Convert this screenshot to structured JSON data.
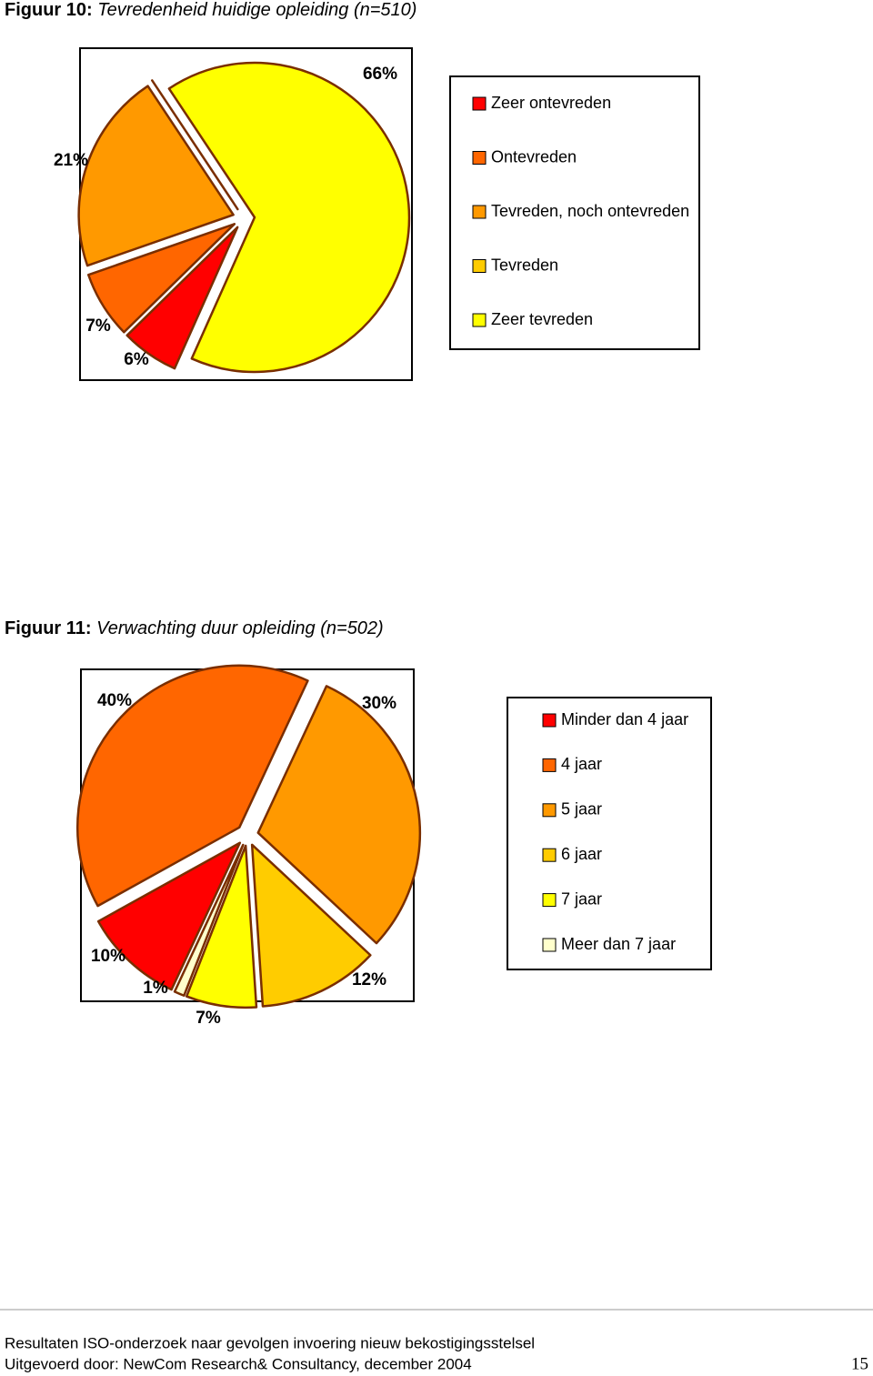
{
  "chart_data": [
    {
      "type": "pie",
      "label": "Figuur 10:",
      "title": "Tevredenheid huidige opleiding (n=510)",
      "categories": [
        "Zeer ontevreden",
        "Ontevreden",
        "Tevreden, noch ontevreden",
        "Tevreden",
        "Zeer tevreden"
      ],
      "values": [
        6,
        7,
        21,
        0,
        66
      ],
      "value_labels": [
        "6%",
        "7%",
        "21%",
        null,
        "66%"
      ],
      "colors": [
        "#ff0000",
        "#ff6600",
        "#ff9900",
        "#ffcc00",
        "#ffff00"
      ]
    },
    {
      "type": "pie",
      "label": "Figuur 11:",
      "title": "Verwachting duur opleiding (n=502)",
      "categories": [
        "Minder dan 4 jaar",
        "4 jaar",
        "5 jaar",
        "6 jaar",
        "7 jaar",
        "Meer dan 7 jaar"
      ],
      "values": [
        10,
        40,
        30,
        12,
        7,
        1
      ],
      "value_labels": [
        "10%",
        "40%",
        "30%",
        "12%",
        "7%",
        "1%"
      ],
      "colors": [
        "#ff0000",
        "#ff6600",
        "#ff9900",
        "#ffcc00",
        "#ffff00",
        "#ffffcc"
      ]
    }
  ],
  "footer": {
    "line1": "Resultaten ISO-onderzoek naar gevolgen invoering nieuw bekostigingsstelsel",
    "line2": "Uitgevoerd door: NewCom Research& Consultancy, december 2004",
    "page": "15"
  }
}
